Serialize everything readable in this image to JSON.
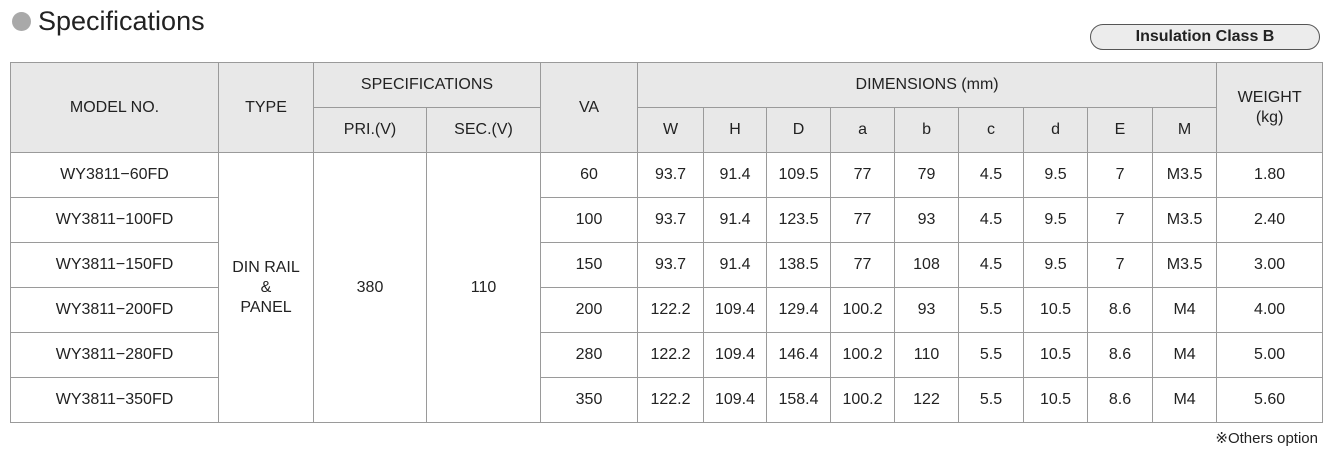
{
  "header": {
    "title": "Specifications",
    "badge": "Insulation Class B"
  },
  "table": {
    "columns": {
      "model": "MODEL NO.",
      "type": "TYPE",
      "specifications": "SPECIFICATIONS",
      "pri": "PRI.(V)",
      "sec": "SEC.(V)",
      "va": "VA",
      "dimensions": "DIMENSIONS (mm)",
      "dims": [
        "W",
        "H",
        "D",
        "a",
        "b",
        "c",
        "d",
        "E",
        "M"
      ],
      "weight": [
        "WEIGHT",
        "(kg)"
      ]
    },
    "type": [
      "DIN RAIL",
      "&",
      "PANEL"
    ],
    "pri": "380",
    "sec": "110",
    "rows": [
      {
        "model": "WY3811−60FD",
        "va": "60",
        "dims": [
          "93.7",
          "91.4",
          "109.5",
          "77",
          "79",
          "4.5",
          "9.5",
          "7",
          "M3.5"
        ],
        "weight": "1.80"
      },
      {
        "model": "WY3811−100FD",
        "va": "100",
        "dims": [
          "93.7",
          "91.4",
          "123.5",
          "77",
          "93",
          "4.5",
          "9.5",
          "7",
          "M3.5"
        ],
        "weight": "2.40"
      },
      {
        "model": "WY3811−150FD",
        "va": "150",
        "dims": [
          "93.7",
          "91.4",
          "138.5",
          "77",
          "108",
          "4.5",
          "9.5",
          "7",
          "M3.5"
        ],
        "weight": "3.00"
      },
      {
        "model": "WY3811−200FD",
        "va": "200",
        "dims": [
          "122.2",
          "109.4",
          "129.4",
          "100.2",
          "93",
          "5.5",
          "10.5",
          "8.6",
          "M4"
        ],
        "weight": "4.00"
      },
      {
        "model": "WY3811−280FD",
        "va": "280",
        "dims": [
          "122.2",
          "109.4",
          "146.4",
          "100.2",
          "110",
          "5.5",
          "10.5",
          "8.6",
          "M4"
        ],
        "weight": "5.00"
      },
      {
        "model": "WY3811−350FD",
        "va": "350",
        "dims": [
          "122.2",
          "109.4",
          "158.4",
          "100.2",
          "122",
          "5.5",
          "10.5",
          "8.6",
          "M4"
        ],
        "weight": "5.60"
      }
    ]
  },
  "footnote": "※Others option"
}
